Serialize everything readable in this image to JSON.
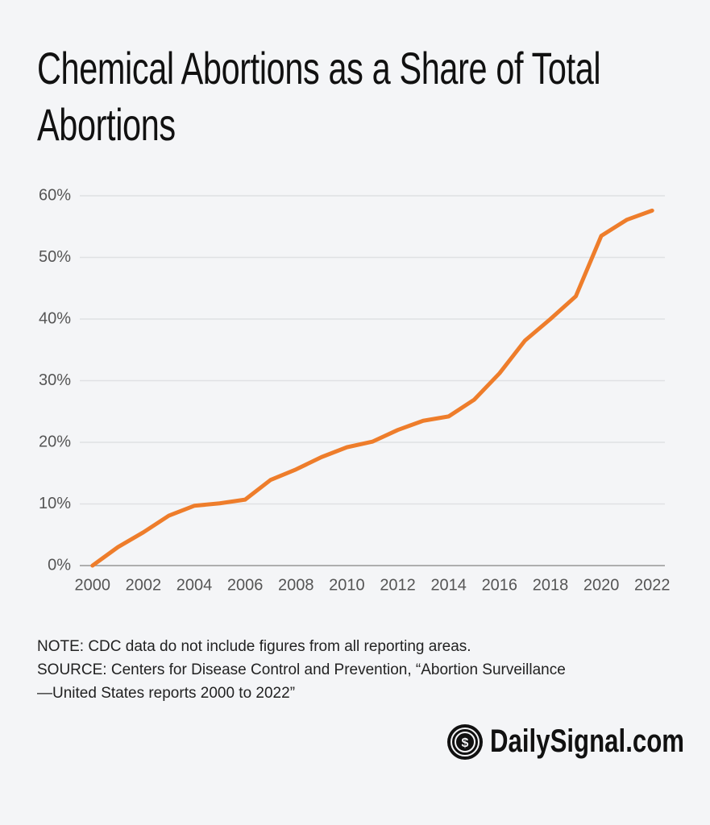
{
  "chart_data": {
    "type": "line",
    "title": "Chemical Abortions as a Share of Total Abortions",
    "x": [
      2000,
      2001,
      2002,
      2003,
      2004,
      2005,
      2006,
      2007,
      2008,
      2009,
      2010,
      2011,
      2012,
      2013,
      2014,
      2015,
      2016,
      2017,
      2018,
      2019,
      2020,
      2021,
      2022
    ],
    "series": [
      {
        "name": "Chemical abortions share",
        "color": "#ee7d2b",
        "values": [
          0,
          3.0,
          5.4,
          8.1,
          9.7,
          10.1,
          10.7,
          13.9,
          15.6,
          17.6,
          19.2,
          20.1,
          22.0,
          23.5,
          24.2,
          26.9,
          31.2,
          36.5,
          40.0,
          43.7,
          53.5,
          56.1,
          57.6
        ]
      }
    ],
    "xlim": [
      1999.5,
      2022.5
    ],
    "xticks": [
      2000,
      2002,
      2004,
      2006,
      2008,
      2010,
      2012,
      2014,
      2016,
      2018,
      2020,
      2022
    ],
    "ylim": [
      0,
      60
    ],
    "yticks": [
      {
        "value": 0,
        "label": "0%"
      },
      {
        "value": 10,
        "label": "10%"
      },
      {
        "value": 20,
        "label": "20%"
      },
      {
        "value": 30,
        "label": "30%"
      },
      {
        "value": 40,
        "label": "40%"
      },
      {
        "value": 50,
        "label": "50%"
      },
      {
        "value": 60,
        "label": "60%"
      }
    ],
    "grid": true,
    "note": "NOTE: CDC data do not include figures from all reporting areas.",
    "source": "SOURCE: Centers for Disease Control and Prevention, “Abortion Surveillance\n—United States reports 2000 to 2022”",
    "logo": "DailySignal.com"
  }
}
